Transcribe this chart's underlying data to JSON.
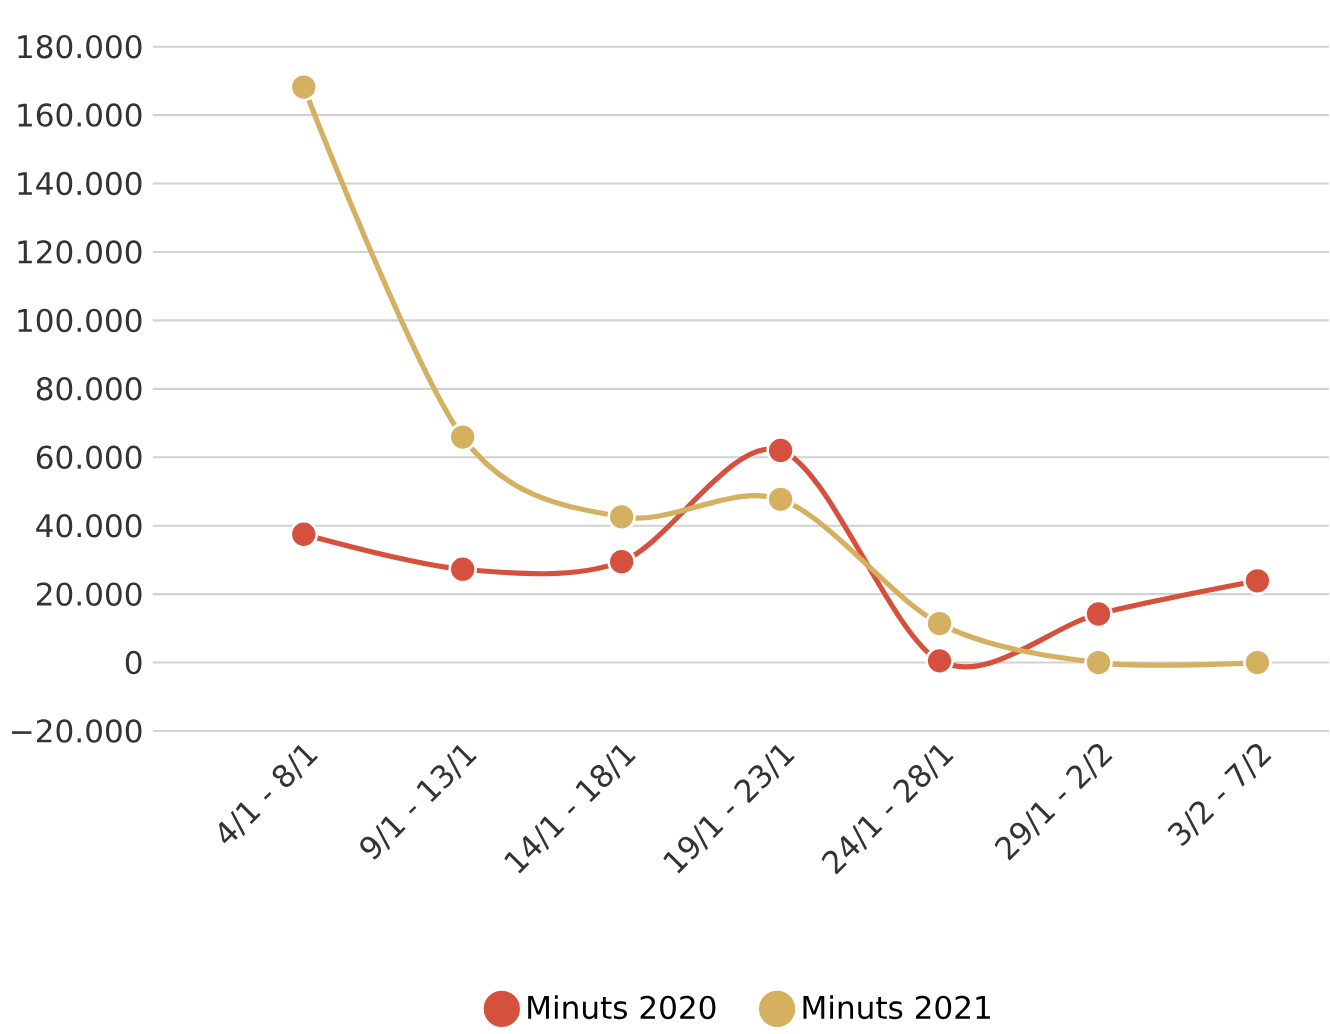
{
  "chart_data": {
    "type": "line",
    "categories": [
      "4/1 - 8/1",
      "9/1 - 13/1",
      "14/1 - 18/1",
      "19/1 - 23/1",
      "24/1 - 28/1",
      "29/1 - 2/2",
      "3/2 - 7/2"
    ],
    "series": [
      {
        "name": "Minuts 2020",
        "color": "#d6513d",
        "values": [
          37500,
          27300,
          29500,
          62000,
          500,
          14200,
          23900
        ]
      },
      {
        "name": "Minuts 2021",
        "color": "#d4b060",
        "values": [
          168200,
          65900,
          42600,
          47700,
          11400,
          0,
          0
        ]
      }
    ],
    "ylim": [
      -20000,
      180000
    ],
    "yticks": [
      {
        "value": -20000,
        "label": "−20.000"
      },
      {
        "value": 0,
        "label": "0"
      },
      {
        "value": 20000,
        "label": "20.000"
      },
      {
        "value": 40000,
        "label": "40.000"
      },
      {
        "value": 60000,
        "label": "60.000"
      },
      {
        "value": 80000,
        "label": "80.000"
      },
      {
        "value": 100000,
        "label": "100.000"
      },
      {
        "value": 120000,
        "label": "120.000"
      },
      {
        "value": 140000,
        "label": "140.000"
      },
      {
        "value": 160000,
        "label": "160.000"
      },
      {
        "value": 180000,
        "label": "180.000"
      }
    ],
    "grid": "y",
    "legend": "bottom",
    "marker": "circle",
    "line_style": "solid"
  }
}
